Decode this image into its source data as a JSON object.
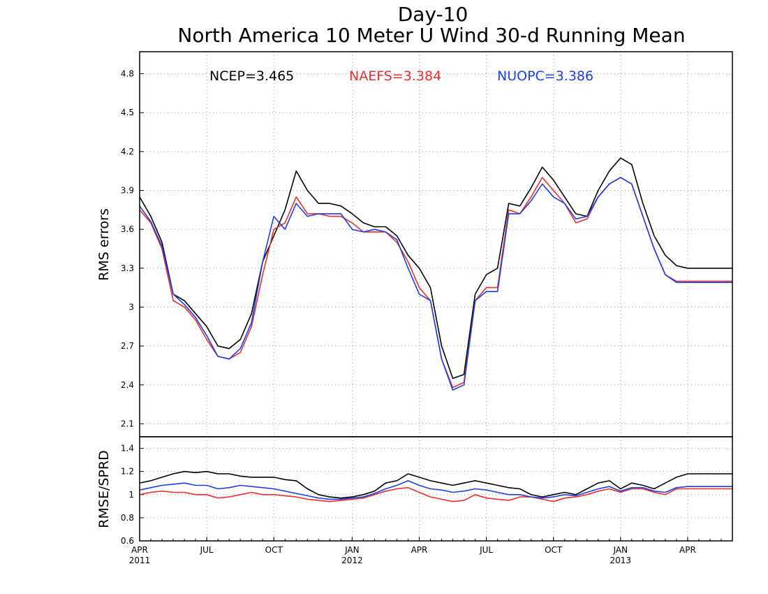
{
  "chart_data": [
    {
      "type": "line",
      "title": "Day-10",
      "subtitle": "North America 10 Meter U Wind 30-d Running Mean",
      "ylabel": "RMS errors",
      "ylim": [
        2.0,
        4.97
      ],
      "yticks": [
        "2.1",
        "2.4",
        "2.7",
        "3",
        "3.3",
        "3.6",
        "3.9",
        "4.2",
        "4.5",
        "4.8"
      ],
      "ytick_values": [
        2.1,
        2.4,
        2.7,
        3.0,
        3.3,
        3.6,
        3.9,
        4.2,
        4.5,
        4.8
      ],
      "xlim": [
        0,
        26.5
      ],
      "grid": true,
      "x_month_index": [
        0,
        0.5,
        1,
        1.5,
        2,
        2.5,
        3,
        3.5,
        4,
        4.5,
        5,
        5.5,
        6,
        6.5,
        7,
        7.5,
        8,
        8.5,
        9,
        9.5,
        10,
        10.5,
        11,
        11.5,
        12,
        12.5,
        13,
        13.5,
        14,
        14.5,
        15,
        15.5,
        16,
        16.5,
        17,
        17.5,
        18,
        18.5,
        19,
        19.5,
        20,
        20.5,
        21,
        21.5,
        22,
        22.5,
        23,
        23.5,
        24,
        24.5,
        25,
        25.5,
        26,
        26.5
      ],
      "series": [
        {
          "label": "NCEP=3.465",
          "color": "#000000",
          "values": [
            3.85,
            3.7,
            3.5,
            3.1,
            3.05,
            2.95,
            2.85,
            2.7,
            2.68,
            2.75,
            2.95,
            3.35,
            3.55,
            3.75,
            4.05,
            3.9,
            3.8,
            3.8,
            3.78,
            3.72,
            3.65,
            3.62,
            3.62,
            3.55,
            3.4,
            3.3,
            3.15,
            2.7,
            2.45,
            2.48,
            3.1,
            3.25,
            3.3,
            3.8,
            3.78,
            3.92,
            4.08,
            3.98,
            3.85,
            3.72,
            3.7,
            3.9,
            4.05,
            4.15,
            4.1,
            3.8,
            3.55,
            3.4,
            3.32,
            3.3,
            3.3,
            3.3,
            3.3,
            3.3
          ]
        },
        {
          "label": "NAEFS=3.384",
          "color": "#e8302e",
          "values": [
            3.75,
            3.65,
            3.45,
            3.05,
            3.0,
            2.9,
            2.75,
            2.62,
            2.6,
            2.65,
            2.85,
            3.25,
            3.6,
            3.65,
            3.85,
            3.72,
            3.72,
            3.7,
            3.7,
            3.65,
            3.58,
            3.58,
            3.58,
            3.5,
            3.35,
            3.15,
            3.05,
            2.6,
            2.38,
            2.42,
            3.05,
            3.15,
            3.15,
            3.75,
            3.72,
            3.85,
            4.0,
            3.9,
            3.8,
            3.65,
            3.68,
            3.85,
            3.95,
            4.0,
            3.95,
            3.7,
            3.45,
            3.25,
            3.2,
            3.2,
            3.2,
            3.2,
            3.2,
            3.2
          ]
        },
        {
          "label": "NUOPC=3.386",
          "color": "#1d3fe8",
          "values": [
            3.78,
            3.66,
            3.47,
            3.1,
            3.02,
            2.92,
            2.78,
            2.62,
            2.6,
            2.68,
            2.88,
            3.35,
            3.7,
            3.6,
            3.8,
            3.7,
            3.72,
            3.72,
            3.72,
            3.6,
            3.58,
            3.6,
            3.58,
            3.52,
            3.3,
            3.1,
            3.05,
            2.6,
            2.36,
            2.4,
            3.05,
            3.12,
            3.12,
            3.72,
            3.72,
            3.82,
            3.95,
            3.85,
            3.8,
            3.68,
            3.7,
            3.85,
            3.95,
            4.0,
            3.95,
            3.7,
            3.45,
            3.25,
            3.19,
            3.19,
            3.19,
            3.19,
            3.19,
            3.19
          ]
        }
      ]
    },
    {
      "type": "line",
      "ylabel": "RMSE/SPRD",
      "ylim": [
        0.6,
        1.5
      ],
      "yticks": [
        "0.6",
        "0.8",
        "1",
        "1.2",
        "1.4"
      ],
      "ytick_values": [
        0.6,
        0.8,
        1.0,
        1.2,
        1.4
      ],
      "xlim": [
        0,
        26.5
      ],
      "grid": true,
      "xticks": [
        {
          "month": "APR",
          "year": "2011",
          "pos": 0
        },
        {
          "month": "JUL",
          "year": "",
          "pos": 3
        },
        {
          "month": "OCT",
          "year": "",
          "pos": 6
        },
        {
          "month": "JAN",
          "year": "2012",
          "pos": 9.5
        },
        {
          "month": "APR",
          "year": "",
          "pos": 12.5
        },
        {
          "month": "JUL",
          "year": "",
          "pos": 15.5
        },
        {
          "month": "OCT",
          "year": "",
          "pos": 18.5
        },
        {
          "month": "JAN",
          "year": "2013",
          "pos": 21.5
        },
        {
          "month": "APR",
          "year": "",
          "pos": 24.5
        }
      ],
      "series": [
        {
          "color": "#000000",
          "values": [
            1.1,
            1.12,
            1.15,
            1.18,
            1.2,
            1.19,
            1.2,
            1.18,
            1.18,
            1.16,
            1.15,
            1.15,
            1.15,
            1.13,
            1.12,
            1.05,
            1.0,
            0.98,
            0.97,
            0.98,
            1.0,
            1.03,
            1.1,
            1.12,
            1.18,
            1.15,
            1.12,
            1.1,
            1.08,
            1.1,
            1.12,
            1.1,
            1.08,
            1.06,
            1.05,
            1.0,
            0.98,
            1.0,
            1.02,
            1.0,
            1.05,
            1.1,
            1.12,
            1.05,
            1.1,
            1.08,
            1.05,
            1.1,
            1.15,
            1.18,
            1.18,
            1.18,
            1.18,
            1.18
          ]
        },
        {
          "color": "#e8302e",
          "values": [
            1.0,
            1.02,
            1.03,
            1.02,
            1.02,
            1.0,
            1.0,
            0.97,
            0.98,
            1.0,
            1.02,
            1.0,
            1.0,
            0.99,
            0.98,
            0.96,
            0.95,
            0.94,
            0.95,
            0.96,
            0.97,
            1.0,
            1.03,
            1.05,
            1.06,
            1.02,
            0.98,
            0.96,
            0.94,
            0.95,
            1.0,
            0.97,
            0.96,
            0.95,
            0.98,
            0.98,
            0.96,
            0.94,
            0.97,
            0.98,
            1.0,
            1.03,
            1.05,
            1.02,
            1.05,
            1.05,
            1.02,
            1.0,
            1.05,
            1.05,
            1.05,
            1.05,
            1.05,
            1.05
          ]
        },
        {
          "color": "#1d3fe8",
          "values": [
            1.04,
            1.06,
            1.08,
            1.09,
            1.1,
            1.08,
            1.08,
            1.05,
            1.06,
            1.08,
            1.07,
            1.06,
            1.05,
            1.03,
            1.01,
            0.99,
            0.97,
            0.96,
            0.96,
            0.97,
            0.98,
            1.01,
            1.05,
            1.08,
            1.12,
            1.08,
            1.05,
            1.04,
            1.02,
            1.03,
            1.05,
            1.04,
            1.02,
            1.0,
            1.0,
            0.98,
            0.97,
            0.98,
            1.0,
            0.99,
            1.02,
            1.05,
            1.07,
            1.03,
            1.06,
            1.06,
            1.03,
            1.02,
            1.06,
            1.07,
            1.07,
            1.07,
            1.07,
            1.07
          ]
        }
      ]
    }
  ]
}
